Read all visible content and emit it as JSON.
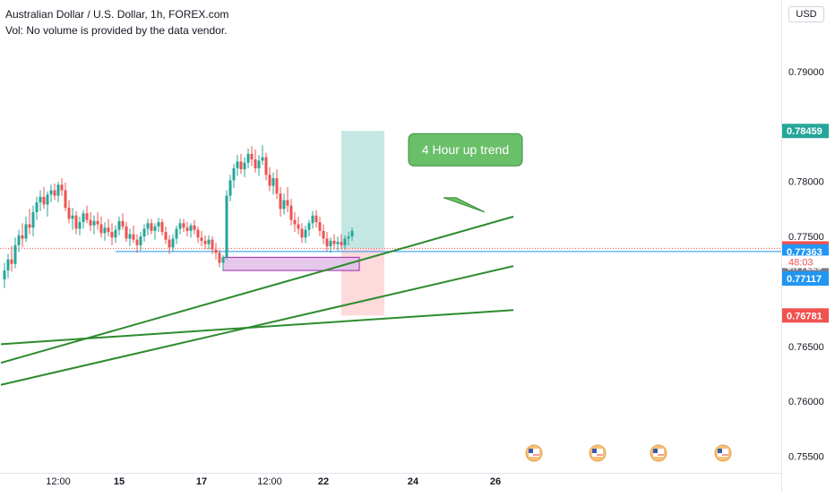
{
  "header": {
    "title": "Australian Dollar / U.S. Dollar, 1h, FOREX.com",
    "volume_note": "Vol: No volume is provided by the data vendor.",
    "currency": "USD"
  },
  "colors": {
    "up": "#26a69a",
    "down": "#ef5350",
    "trendline": "#2e8b2e",
    "support_line": "#2196f3",
    "profit_zone": "#b2dfdb",
    "loss_zone": "#fccdd0",
    "demand_zone": "#e1bee7",
    "demand_border": "#9c27b0",
    "callout_fill": "#6abf69"
  },
  "annotations": {
    "callout_text": "4 Hour up trend",
    "countdown": "48:03"
  },
  "chart_data": {
    "type": "candlestick",
    "ylim": [
      0.7535,
      0.7965
    ],
    "grid": false,
    "y_ticks": [
      "0.79000",
      "0.78000",
      "0.77500",
      "0.76500",
      "0.76000",
      "0.75500"
    ],
    "y_tick_values": [
      0.79,
      0.78,
      0.775,
      0.765,
      0.76,
      0.755
    ],
    "x_ticks": [
      "12:00",
      "15",
      "17",
      "12:00",
      "22",
      "24",
      "26"
    ],
    "x_tick_index": [
      15,
      32,
      55,
      74,
      89,
      114,
      137
    ],
    "price_labels": [
      {
        "text": "0.78459",
        "value": 0.78459,
        "color": "#26a69a"
      },
      {
        "text": "0.77391",
        "value": 0.77391,
        "color": "#ef5350"
      },
      {
        "text": "0.77363",
        "value": 0.77363,
        "color": "#2196f3"
      },
      {
        "text": "0.77229",
        "value": 0.77229,
        "color": "#787b86"
      },
      {
        "text": "0.77117",
        "value": 0.77117,
        "color": "#2196f3"
      },
      {
        "text": "0.76781",
        "value": 0.76781,
        "color": "#ef5350"
      }
    ],
    "trendlines": [
      {
        "i1": -1,
        "p1": 0.7635,
        "i2": 142,
        "p2": 0.7768
      },
      {
        "i1": -1,
        "p1": 0.7615,
        "i2": 142,
        "p2": 0.7723
      },
      {
        "i1": -1,
        "p1": 0.7652,
        "i2": 142,
        "p2": 0.7683
      }
    ],
    "support_line": {
      "i1": 31,
      "i2": 142,
      "value": 0.77363
    },
    "demand_zone": {
      "i1": 61,
      "i2": 99,
      "top": 0.7731,
      "bottom": 0.7719
    },
    "position": {
      "i1": 94,
      "i2": 106,
      "entry": 0.77391,
      "target": 0.78459,
      "stop": 0.76781
    },
    "arrow": {
      "i1": 124,
      "p1": 0.7777,
      "i2": 133,
      "p2": 0.7795
    },
    "candles": [
      [
        0.7711,
        0.7726,
        0.7703,
        0.7719
      ],
      [
        0.7719,
        0.7734,
        0.7712,
        0.7729
      ],
      [
        0.7729,
        0.7741,
        0.7718,
        0.7725
      ],
      [
        0.7725,
        0.7749,
        0.7721,
        0.7742
      ],
      [
        0.7742,
        0.7756,
        0.7736,
        0.7751
      ],
      [
        0.7751,
        0.7762,
        0.774,
        0.7748
      ],
      [
        0.7748,
        0.7768,
        0.7745,
        0.7761
      ],
      [
        0.7761,
        0.7775,
        0.7752,
        0.7758
      ],
      [
        0.7758,
        0.7778,
        0.775,
        0.7772
      ],
      [
        0.7772,
        0.7786,
        0.7765,
        0.7781
      ],
      [
        0.7781,
        0.7792,
        0.7773,
        0.7786
      ],
      [
        0.7786,
        0.7795,
        0.7775,
        0.7779
      ],
      [
        0.7779,
        0.7791,
        0.7768,
        0.7788
      ],
      [
        0.7788,
        0.7797,
        0.7781,
        0.7792
      ],
      [
        0.7792,
        0.7798,
        0.7783,
        0.7787
      ],
      [
        0.7787,
        0.78,
        0.7781,
        0.7797
      ],
      [
        0.7797,
        0.7803,
        0.7787,
        0.7792
      ],
      [
        0.7792,
        0.7799,
        0.7773,
        0.7776
      ],
      [
        0.7776,
        0.7783,
        0.7762,
        0.7766
      ],
      [
        0.7766,
        0.7776,
        0.7756,
        0.7769
      ],
      [
        0.7769,
        0.7773,
        0.7752,
        0.7757
      ],
      [
        0.7757,
        0.7768,
        0.7751,
        0.7763
      ],
      [
        0.7763,
        0.7774,
        0.7757,
        0.7771
      ],
      [
        0.7771,
        0.7778,
        0.7762,
        0.7765
      ],
      [
        0.7765,
        0.7772,
        0.7755,
        0.776
      ],
      [
        0.776,
        0.7769,
        0.7752,
        0.7764
      ],
      [
        0.7764,
        0.7772,
        0.7756,
        0.7761
      ],
      [
        0.7761,
        0.7768,
        0.7749,
        0.7753
      ],
      [
        0.7753,
        0.7763,
        0.7746,
        0.7758
      ],
      [
        0.7758,
        0.7766,
        0.775,
        0.7754
      ],
      [
        0.7754,
        0.7762,
        0.7742,
        0.7749
      ],
      [
        0.7749,
        0.776,
        0.7744,
        0.7756
      ],
      [
        0.7756,
        0.7768,
        0.7751,
        0.7764
      ],
      [
        0.7764,
        0.7771,
        0.7756,
        0.7759
      ],
      [
        0.7759,
        0.7763,
        0.7745,
        0.7748
      ],
      [
        0.7748,
        0.7757,
        0.7741,
        0.7752
      ],
      [
        0.7752,
        0.776,
        0.7744,
        0.7747
      ],
      [
        0.7747,
        0.7752,
        0.7735,
        0.7742
      ],
      [
        0.7742,
        0.7754,
        0.7737,
        0.775
      ],
      [
        0.775,
        0.7761,
        0.7745,
        0.7757
      ],
      [
        0.7757,
        0.7766,
        0.7751,
        0.7762
      ],
      [
        0.7762,
        0.7766,
        0.7752,
        0.7755
      ],
      [
        0.7755,
        0.7762,
        0.7747,
        0.7759
      ],
      [
        0.7759,
        0.7767,
        0.7754,
        0.7763
      ],
      [
        0.7763,
        0.7766,
        0.7751,
        0.7754
      ],
      [
        0.7754,
        0.7759,
        0.7743,
        0.7747
      ],
      [
        0.7747,
        0.7751,
        0.7734,
        0.774
      ],
      [
        0.774,
        0.7752,
        0.7736,
        0.7748
      ],
      [
        0.7748,
        0.776,
        0.7743,
        0.7757
      ],
      [
        0.7757,
        0.7766,
        0.7752,
        0.7762
      ],
      [
        0.7762,
        0.7766,
        0.7754,
        0.7758
      ],
      [
        0.7758,
        0.7763,
        0.775,
        0.7755
      ],
      [
        0.7755,
        0.7762,
        0.7749,
        0.776
      ],
      [
        0.776,
        0.7765,
        0.7752,
        0.7756
      ],
      [
        0.7756,
        0.7759,
        0.7744,
        0.7749
      ],
      [
        0.7749,
        0.7755,
        0.7741,
        0.7746
      ],
      [
        0.7746,
        0.7751,
        0.7738,
        0.7743
      ],
      [
        0.7743,
        0.7751,
        0.7738,
        0.7747
      ],
      [
        0.7747,
        0.775,
        0.7734,
        0.7738
      ],
      [
        0.7738,
        0.7744,
        0.7729,
        0.7735
      ],
      [
        0.7735,
        0.7738,
        0.7722,
        0.7726
      ],
      [
        0.7726,
        0.7733,
        0.7719,
        0.7731
      ],
      [
        0.7731,
        0.7792,
        0.7729,
        0.7787
      ],
      [
        0.7787,
        0.7806,
        0.7782,
        0.7801
      ],
      [
        0.7801,
        0.7816,
        0.7794,
        0.7812
      ],
      [
        0.7812,
        0.7824,
        0.7805,
        0.7818
      ],
      [
        0.7818,
        0.7825,
        0.7807,
        0.7811
      ],
      [
        0.7811,
        0.7822,
        0.7804,
        0.7817
      ],
      [
        0.7817,
        0.783,
        0.7812,
        0.7825
      ],
      [
        0.7825,
        0.7832,
        0.7814,
        0.782
      ],
      [
        0.782,
        0.7829,
        0.7808,
        0.7812
      ],
      [
        0.7812,
        0.7824,
        0.7805,
        0.7819
      ],
      [
        0.7819,
        0.7833,
        0.7815,
        0.7822
      ],
      [
        0.7822,
        0.7826,
        0.7801,
        0.7806
      ],
      [
        0.7806,
        0.7813,
        0.7791,
        0.7796
      ],
      [
        0.7796,
        0.7808,
        0.7788,
        0.7803
      ],
      [
        0.7803,
        0.7811,
        0.7784,
        0.7789
      ],
      [
        0.7789,
        0.7795,
        0.7768,
        0.7775
      ],
      [
        0.7775,
        0.7789,
        0.777,
        0.7783
      ],
      [
        0.7783,
        0.7795,
        0.7772,
        0.7778
      ],
      [
        0.7778,
        0.7784,
        0.776,
        0.7765
      ],
      [
        0.7765,
        0.7772,
        0.7754,
        0.7761
      ],
      [
        0.7761,
        0.7768,
        0.7752,
        0.7757
      ],
      [
        0.7757,
        0.7762,
        0.7744,
        0.7749
      ],
      [
        0.7749,
        0.776,
        0.7744,
        0.7756
      ],
      [
        0.7756,
        0.7765,
        0.775,
        0.7762
      ],
      [
        0.7762,
        0.7773,
        0.7757,
        0.7769
      ],
      [
        0.7769,
        0.7774,
        0.7758,
        0.7763
      ],
      [
        0.7763,
        0.7768,
        0.775,
        0.7755
      ],
      [
        0.7755,
        0.7761,
        0.7743,
        0.7748
      ],
      [
        0.7748,
        0.7754,
        0.7736,
        0.7741
      ],
      [
        0.7741,
        0.7749,
        0.7735,
        0.7746
      ],
      [
        0.7746,
        0.7752,
        0.7738,
        0.7743
      ],
      [
        0.7743,
        0.775,
        0.7737,
        0.7745
      ],
      [
        0.7745,
        0.7752,
        0.7738,
        0.7742
      ],
      [
        0.7742,
        0.7751,
        0.7738,
        0.7748
      ],
      [
        0.7748,
        0.7754,
        0.7742,
        0.775
      ],
      [
        0.775,
        0.7758,
        0.7746,
        0.7755
      ]
    ]
  }
}
